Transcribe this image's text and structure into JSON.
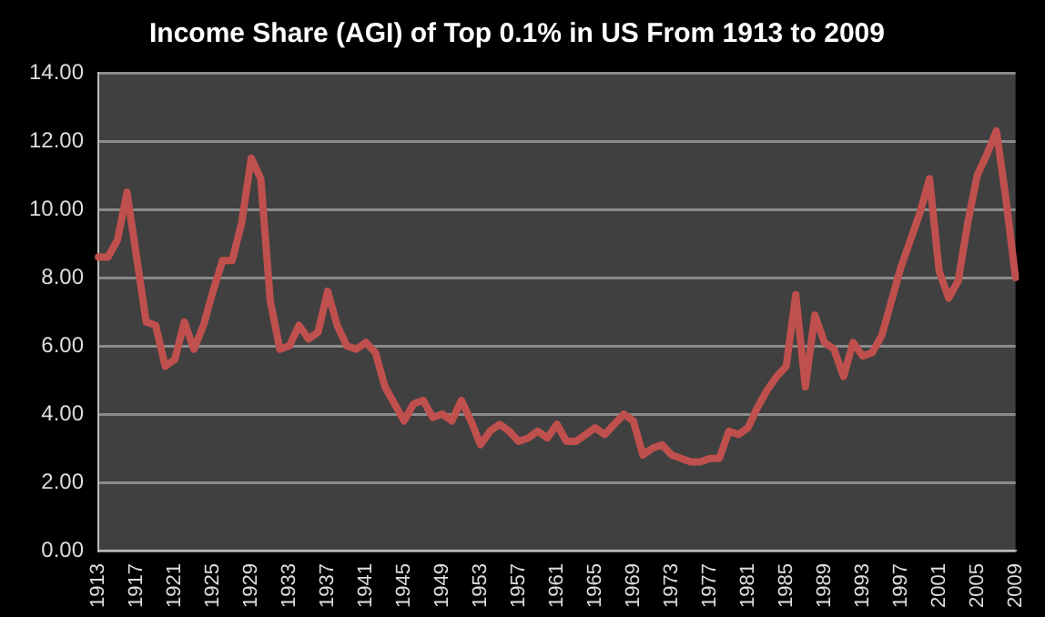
{
  "chart_data": {
    "type": "line",
    "title": "Income Share (AGI) of Top 0.1% in US From 1913 to 2009",
    "categories": [
      "1913",
      null,
      null,
      null,
      "1917",
      null,
      null,
      null,
      "1921",
      null,
      null,
      null,
      "1925",
      null,
      null,
      null,
      "1929",
      null,
      null,
      null,
      "1933",
      null,
      null,
      null,
      "1937",
      null,
      null,
      null,
      "1941",
      null,
      null,
      null,
      "1945",
      null,
      null,
      null,
      "1949",
      null,
      null,
      null,
      "1953",
      null,
      null,
      null,
      "1957",
      null,
      null,
      null,
      "1961",
      null,
      null,
      null,
      "1965",
      null,
      null,
      null,
      "1969",
      null,
      null,
      null,
      "1973",
      null,
      null,
      null,
      "1977",
      null,
      null,
      null,
      "1981",
      null,
      null,
      null,
      "1985",
      null,
      null,
      null,
      "1989",
      null,
      null,
      null,
      "1993",
      null,
      null,
      null,
      "1997",
      null,
      null,
      null,
      "2001",
      null,
      null,
      null,
      "2005",
      null,
      null,
      null,
      "2009"
    ],
    "series": [
      {
        "color": "#c0504d",
        "values": [
          8.6,
          8.6,
          9.1,
          10.5,
          8.6,
          6.7,
          6.6,
          5.4,
          5.6,
          6.7,
          5.9,
          6.6,
          7.6,
          8.5,
          8.5,
          9.6,
          11.5,
          10.9,
          7.3,
          5.9,
          6.0,
          6.6,
          6.2,
          6.4,
          7.6,
          6.6,
          6.0,
          5.9,
          6.1,
          5.8,
          4.8,
          4.3,
          3.8,
          4.3,
          4.4,
          3.9,
          4.0,
          3.8,
          4.4,
          3.8,
          3.1,
          3.5,
          3.7,
          3.5,
          3.2,
          3.3,
          3.5,
          3.3,
          3.7,
          3.2,
          3.2,
          3.4,
          3.6,
          3.4,
          3.7,
          4.0,
          3.8,
          2.8,
          3.0,
          3.1,
          2.8,
          2.7,
          2.6,
          2.6,
          2.7,
          2.7,
          3.5,
          3.4,
          3.6,
          4.2,
          4.7,
          5.1,
          5.4,
          7.5,
          4.8,
          6.9,
          6.1,
          5.9,
          5.1,
          6.1,
          5.7,
          5.8,
          6.3,
          7.3,
          8.3,
          9.1,
          9.9,
          10.9,
          8.2,
          7.4,
          7.9,
          9.6,
          11.0,
          11.6,
          12.3,
          10.3,
          8.0
        ]
      }
    ],
    "ylim": [
      0,
      14
    ],
    "yticks": [
      {
        "value": 0,
        "label": "0.00"
      },
      {
        "value": 2,
        "label": "2.00"
      },
      {
        "value": 4,
        "label": "4.00"
      },
      {
        "value": 6,
        "label": "6.00"
      },
      {
        "value": 8,
        "label": "8.00"
      },
      {
        "value": 10,
        "label": "10.00"
      },
      {
        "value": 12,
        "label": "12.00"
      },
      {
        "value": 14,
        "label": "14.00"
      }
    ],
    "grid": "y",
    "legend": false,
    "marker": "none",
    "line_style": "solid"
  }
}
